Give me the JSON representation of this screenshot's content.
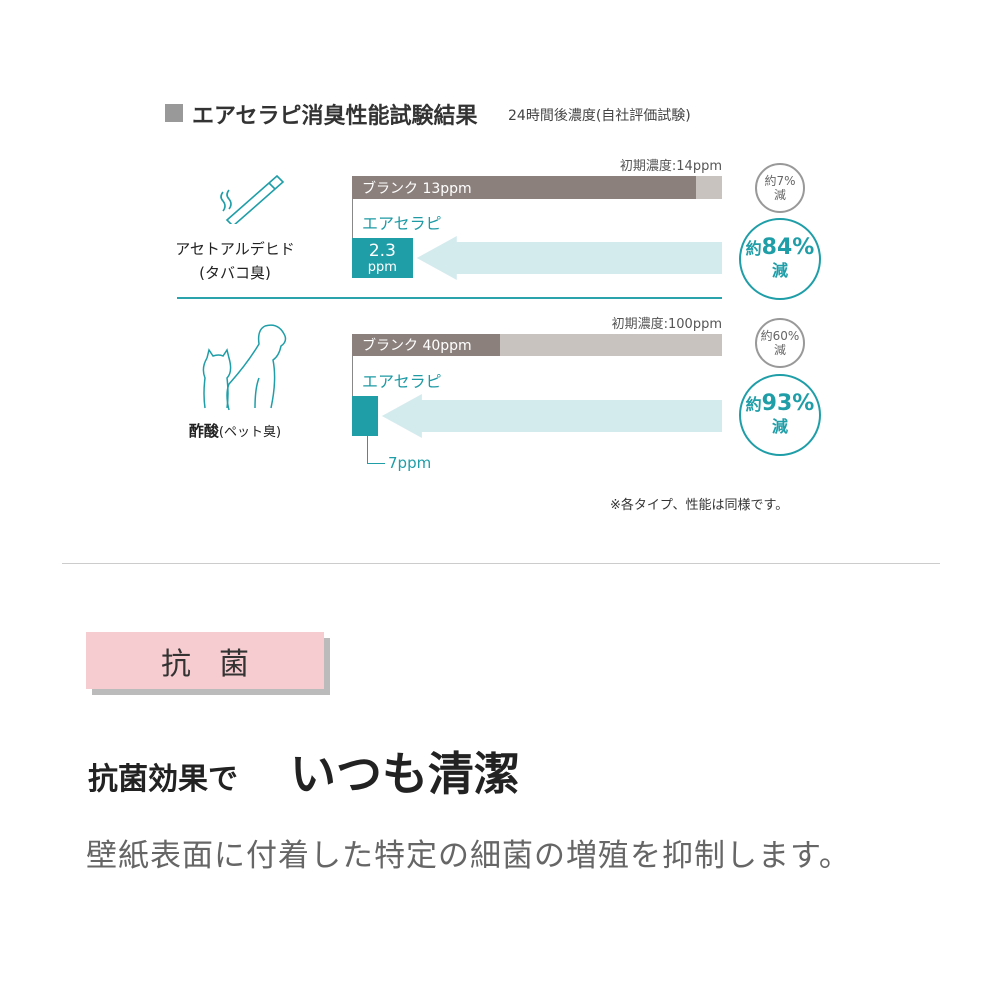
{
  "title": "エアセラピ消臭性能試験結果",
  "subtitle": "24時間後濃度(自社評価試験)",
  "colors": {
    "teal": "#1f9ea8",
    "light_teal": "#d4ebee",
    "blank": "#8b807c",
    "blank_bg": "#c9c3c0",
    "pink": "#f7ccd0"
  },
  "chart_data": {
    "type": "bar",
    "groups": [
      {
        "name": "アセトアルデヒド",
        "sub": "(タバコ臭)",
        "icon": "cigarette-icon",
        "initial_label": "初期濃度:14ppm",
        "initial": 14,
        "blank_label": "ブランク 13ppm",
        "blank": 13,
        "product_label": "エアセラピ",
        "product": 2.3,
        "product_value_label": "2.3",
        "product_unit": "ppm",
        "blank_reduction": [
          "約7%",
          "減"
        ],
        "product_reduction": [
          "約",
          "84%",
          "減"
        ]
      },
      {
        "name": "酢酸",
        "sub": "(ペット臭)",
        "icon": "dog-cat-icon",
        "initial_label": "初期濃度:100ppm",
        "initial": 100,
        "blank_label": "ブランク  40ppm",
        "blank": 40,
        "product_label": "エアセラピ",
        "product": 7,
        "product_value_label": "7ppm",
        "blank_reduction": [
          "約60%",
          "減"
        ],
        "product_reduction": [
          "約",
          "93%",
          "減"
        ]
      }
    ]
  },
  "note": "※各タイプ、性能は同様です。",
  "section": {
    "tag": "抗菌",
    "heading_small": "抗菌効果で",
    "heading_large": "いつも清潔",
    "description": "壁紙表面に付着した特定の細菌の増殖を抑制します。"
  }
}
